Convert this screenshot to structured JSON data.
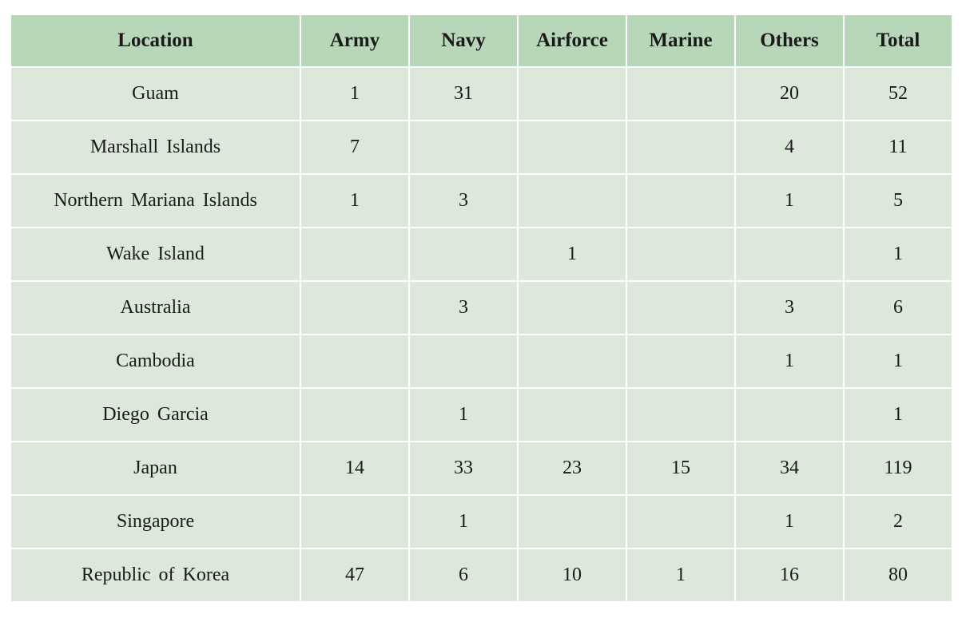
{
  "table": {
    "headers": [
      "Location",
      "Army",
      "Navy",
      "Airforce",
      "Marine",
      "Others",
      "Total"
    ],
    "rows": [
      [
        "Guam",
        "1",
        "31",
        "",
        "",
        "20",
        "52"
      ],
      [
        "Marshall Islands",
        "7",
        "",
        "",
        "",
        "4",
        "11"
      ],
      [
        "Northern Mariana Islands",
        "1",
        "3",
        "",
        "",
        "1",
        "5"
      ],
      [
        "Wake Island",
        "",
        "",
        "1",
        "",
        "",
        "1"
      ],
      [
        "Australia",
        "",
        "3",
        "",
        "",
        "3",
        "6"
      ],
      [
        "Cambodia",
        "",
        "",
        "",
        "",
        "1",
        "1"
      ],
      [
        "Diego Garcia",
        "",
        "1",
        "",
        "",
        "",
        "1"
      ],
      [
        "Japan",
        "14",
        "33",
        "23",
        "15",
        "34",
        "119"
      ],
      [
        "Singapore",
        "",
        "1",
        "",
        "",
        "1",
        "2"
      ],
      [
        "Republic of Korea",
        "47",
        "6",
        "10",
        "1",
        "16",
        "80"
      ]
    ]
  },
  "colors": {
    "header_bg": "#b8d6b8",
    "row_bg": "#dbe8da",
    "grid": "#ffffff"
  }
}
